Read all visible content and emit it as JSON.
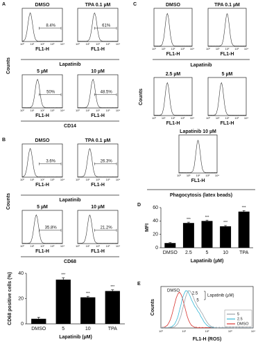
{
  "panel_a": {
    "label": "A",
    "histograms": [
      {
        "title": "DMSO",
        "percent": "8.4%"
      },
      {
        "title": "TPA 0.1 µM",
        "percent": "61%"
      },
      {
        "title": "5 µM",
        "percent": "50%"
      },
      {
        "title": "10 µM",
        "percent": "48.5%"
      }
    ],
    "treatment": "Lapatinib",
    "y_label": "Counts",
    "x_label": "CD14"
  },
  "panel_b": {
    "label": "B",
    "histograms": [
      {
        "title": "DMSO",
        "percent": "3.6%"
      },
      {
        "title": "TPA 0.1 µM",
        "percent": "26.3%"
      },
      {
        "title": "5 µM",
        "percent": "35.8%"
      },
      {
        "title": "10 µM",
        "percent": "21.2%"
      }
    ],
    "treatment": "Lapatinib",
    "y_label": "Counts",
    "x_label": "CD68"
  },
  "panel_c": {
    "label": "C",
    "histograms": [
      {
        "title": "DMSO"
      },
      {
        "title": "TPA 0.1 µM"
      },
      {
        "title": "2.5 µM"
      },
      {
        "title": "5 µM"
      },
      {
        "title": "Lapatinib 10 µM"
      }
    ],
    "treatment": "Lapatinib",
    "y_label": "Counts",
    "x_label": "Phagocytosis (latex beads)"
  },
  "histogram_axis_label": "FL1-H",
  "histogram_ticks": [
    "10⁰",
    "10¹",
    "10²",
    "10³",
    "10⁴"
  ],
  "panel_e": {
    "label": "E",
    "y_label": "Counts",
    "x_label": "FL1-H (ROS)",
    "curve_labels": [
      "DMSO",
      "2.5",
      "5"
    ],
    "bracket_label": "Lapatinib (µM)",
    "legend": [
      {
        "name": "5",
        "color": "#9aa0a6"
      },
      {
        "name": "2.5",
        "color": "#35b6d6"
      },
      {
        "name": "DMSO",
        "color": "#d8332e"
      }
    ]
  },
  "chart_data": [
    {
      "type": "bar",
      "y_label": "CD68 positive cells (%)",
      "x_label": "Lapatinib (µM)",
      "categories": [
        "DMSO",
        "5",
        "10",
        "TPA"
      ],
      "values": [
        4,
        35,
        21,
        26
      ],
      "errors": [
        1.2,
        1.5,
        0.8,
        1
      ],
      "sig_labels": [
        null,
        "***",
        "***",
        "***"
      ],
      "color": "#000000",
      "ylim": [
        0,
        40
      ],
      "yticks": [
        0,
        20,
        40
      ]
    },
    {
      "type": "bar",
      "label": "D",
      "y_label": "MFI",
      "x_label": "Lapatinib (µM)",
      "categories": [
        "DMSO",
        "2.5",
        "5",
        "10",
        "TPA"
      ],
      "values": [
        7,
        37,
        40,
        32,
        54
      ],
      "errors": [
        0.8,
        1.2,
        1.2,
        1.2,
        1.5
      ],
      "sig_labels": [
        null,
        "***",
        "***",
        "***",
        "***"
      ],
      "color": "#000000",
      "ylim": [
        0,
        60
      ],
      "yticks": [
        0,
        20,
        40,
        60
      ]
    }
  ]
}
